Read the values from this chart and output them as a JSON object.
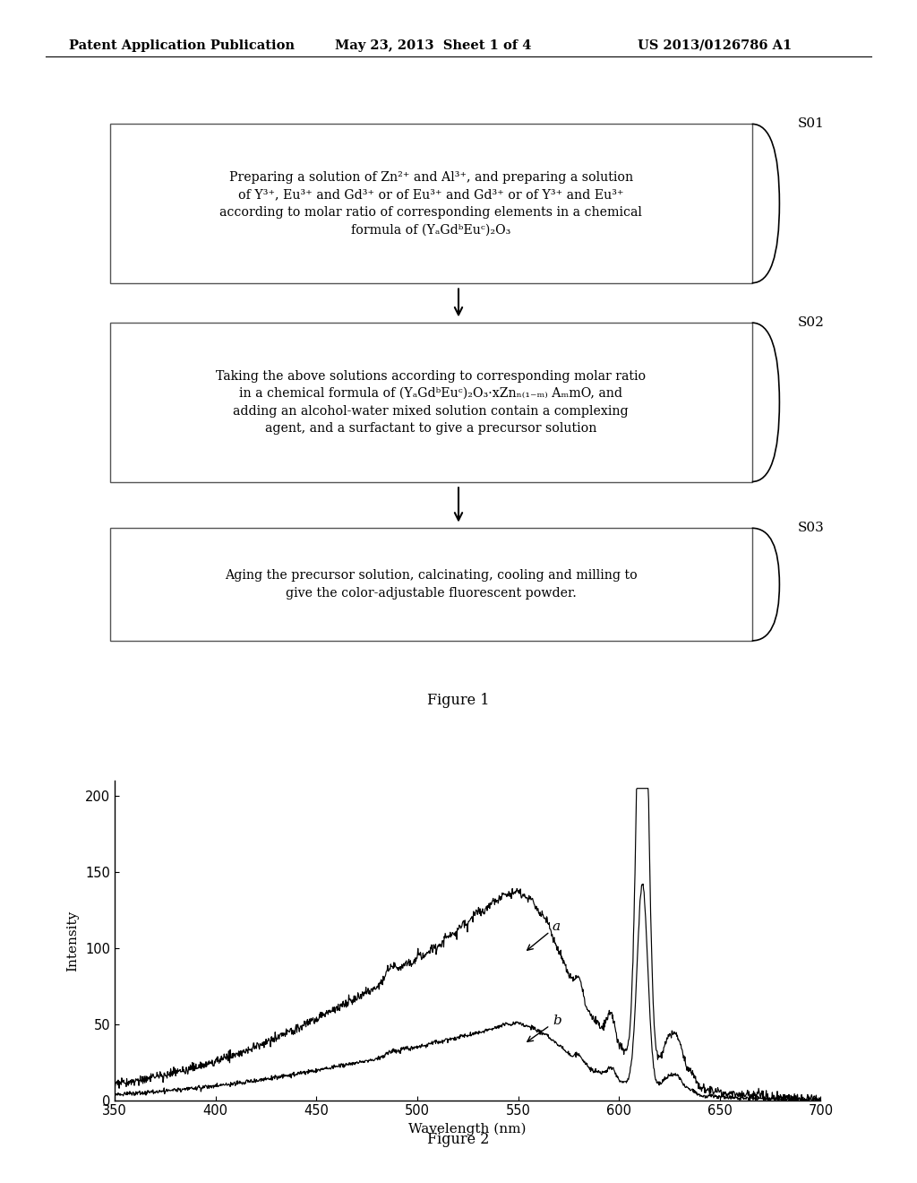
{
  "header_left": "Patent Application Publication",
  "header_mid": "May 23, 2013  Sheet 1 of 4",
  "header_right": "US 2013/0126786 A1",
  "bg_color": "#ffffff",
  "text_color": "#000000",
  "box1_text": "Preparing a solution of Zn²⁺ and Al³⁺, and preparing a solution\nof Y³⁺, Eu³⁺ and Gd³⁺ or of Eu³⁺ and Gd³⁺ or of Y³⁺ and Eu³⁺\naccording to molar ratio of corresponding elements in a chemical\nformula of (YₐGdᵇEuᶜ)₂O₃",
  "label1": "S01",
  "box2_text": "Taking the above solutions according to corresponding molar ratio\nin a chemical formula of (YₐGdᵇEuᶜ)₂O₃·xZnₙ₍₁₋ₘ₎ AₘmO, and\nadding an alcohol-water mixed solution contain a complexing\nagent, and a surfactant to give a precursor solution",
  "label2": "S02",
  "box3_text": "Aging the precursor solution, calcinating, cooling and milling to\ngive the color-adjustable fluorescent powder.",
  "label3": "S03",
  "fig1_caption": "Figure 1",
  "fig2_caption": "Figure 2",
  "plot_xlim": [
    350,
    700
  ],
  "plot_ylim": [
    0,
    210
  ],
  "plot_xticks": [
    350,
    400,
    450,
    500,
    550,
    600,
    650,
    700
  ],
  "plot_yticks": [
    0,
    50,
    100,
    150,
    200
  ],
  "plot_xlabel": "Wavelength (nm)",
  "plot_ylabel": "Intensity",
  "curve_a_label": "a",
  "curve_b_label": "b"
}
